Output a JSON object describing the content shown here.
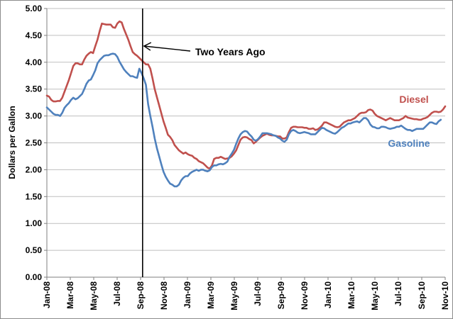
{
  "chart_data": {
    "type": "line",
    "title": "",
    "xlabel": "",
    "ylabel": "Dollars per Gallon",
    "ylim": [
      0,
      5
    ],
    "yticks": [
      "0.00",
      "0.50",
      "1.00",
      "1.50",
      "2.00",
      "2.50",
      "3.00",
      "3.50",
      "4.00",
      "4.50",
      "5.00"
    ],
    "grid": true,
    "xtick_labels": [
      "Jan-08",
      "Mar-08",
      "May-08",
      "Jul-08",
      "Sep-08",
      "Nov-08",
      "Jan-09",
      "Mar-09",
      "May-09",
      "Jul-09",
      "Sep-09",
      "Nov-09",
      "Jan-10",
      "Mar-10",
      "May-10",
      "Jul-10",
      "Sep-10",
      "Nov-10"
    ],
    "x_note": "weekly points, x in weeks from Jan-08",
    "annotation": {
      "text": "Two Years Ago",
      "at_week": 43.5
    },
    "series": [
      {
        "name": "Diesel",
        "color": "#c0504d",
        "values": [
          3.38,
          3.36,
          3.3,
          3.27,
          3.27,
          3.28,
          3.28,
          3.34,
          3.45,
          3.56,
          3.67,
          3.8,
          3.93,
          3.98,
          3.98,
          3.96,
          3.96,
          4.05,
          4.12,
          4.16,
          4.19,
          4.17,
          4.3,
          4.42,
          4.58,
          4.72,
          4.71,
          4.7,
          4.7,
          4.7,
          4.65,
          4.64,
          4.72,
          4.76,
          4.74,
          4.62,
          4.52,
          4.42,
          4.3,
          4.19,
          4.15,
          4.12,
          4.08,
          4.04,
          4.0,
          3.96,
          3.96,
          3.88,
          3.7,
          3.5,
          3.35,
          3.2,
          3.05,
          2.9,
          2.78,
          2.65,
          2.61,
          2.55,
          2.46,
          2.41,
          2.36,
          2.33,
          2.3,
          2.32,
          2.29,
          2.27,
          2.26,
          2.22,
          2.2,
          2.16,
          2.14,
          2.12,
          2.08,
          2.04,
          2.02,
          2.08,
          2.2,
          2.22,
          2.22,
          2.24,
          2.22,
          2.2,
          2.21,
          2.22,
          2.25,
          2.3,
          2.36,
          2.46,
          2.56,
          2.6,
          2.61,
          2.6,
          2.57,
          2.55,
          2.49,
          2.52,
          2.56,
          2.6,
          2.63,
          2.65,
          2.67,
          2.65,
          2.64,
          2.64,
          2.63,
          2.62,
          2.62,
          2.58,
          2.58,
          2.6,
          2.7,
          2.78,
          2.8,
          2.8,
          2.79,
          2.79,
          2.79,
          2.78,
          2.78,
          2.76,
          2.76,
          2.77,
          2.74,
          2.75,
          2.78,
          2.82,
          2.88,
          2.88,
          2.86,
          2.84,
          2.82,
          2.8,
          2.79,
          2.8,
          2.84,
          2.88,
          2.9,
          2.92,
          2.92,
          2.94,
          2.96,
          3.0,
          3.04,
          3.06,
          3.06,
          3.07,
          3.11,
          3.12,
          3.1,
          3.04,
          3.0,
          2.98,
          2.96,
          2.94,
          2.92,
          2.94,
          2.96,
          2.94,
          2.92,
          2.92,
          2.92,
          2.94,
          2.96,
          3.0,
          2.97,
          2.96,
          2.95,
          2.94,
          2.94,
          2.93,
          2.93,
          2.95,
          2.96,
          2.98,
          3.02,
          3.06,
          3.08,
          3.08,
          3.07,
          3.08,
          3.12,
          3.18
        ]
      },
      {
        "name": "Gasoline",
        "color": "#4f81bd",
        "values": [
          3.16,
          3.12,
          3.08,
          3.04,
          3.02,
          3.02,
          3.0,
          3.06,
          3.15,
          3.2,
          3.24,
          3.3,
          3.34,
          3.31,
          3.33,
          3.37,
          3.41,
          3.5,
          3.6,
          3.66,
          3.68,
          3.76,
          3.85,
          3.98,
          4.04,
          4.08,
          4.12,
          4.13,
          4.13,
          4.15,
          4.16,
          4.15,
          4.1,
          4.01,
          3.94,
          3.87,
          3.82,
          3.78,
          3.74,
          3.74,
          3.72,
          3.71,
          3.88,
          3.8,
          3.7,
          3.58,
          3.22,
          3.0,
          2.8,
          2.58,
          2.4,
          2.25,
          2.1,
          1.96,
          1.87,
          1.8,
          1.74,
          1.72,
          1.69,
          1.69,
          1.72,
          1.8,
          1.85,
          1.88,
          1.88,
          1.93,
          1.96,
          1.98,
          2.0,
          1.98,
          2.0,
          2.0,
          1.98,
          1.97,
          1.99,
          2.05,
          2.08,
          2.08,
          2.1,
          2.11,
          2.1,
          2.12,
          2.15,
          2.24,
          2.3,
          2.37,
          2.48,
          2.58,
          2.66,
          2.7,
          2.72,
          2.71,
          2.66,
          2.62,
          2.56,
          2.54,
          2.57,
          2.62,
          2.68,
          2.68,
          2.68,
          2.67,
          2.66,
          2.64,
          2.63,
          2.6,
          2.58,
          2.54,
          2.52,
          2.56,
          2.66,
          2.72,
          2.74,
          2.72,
          2.69,
          2.68,
          2.69,
          2.7,
          2.69,
          2.68,
          2.66,
          2.66,
          2.66,
          2.7,
          2.74,
          2.78,
          2.77,
          2.74,
          2.72,
          2.7,
          2.68,
          2.67,
          2.7,
          2.74,
          2.78,
          2.8,
          2.83,
          2.86,
          2.86,
          2.88,
          2.89,
          2.9,
          2.88,
          2.92,
          2.96,
          2.96,
          2.92,
          2.84,
          2.8,
          2.79,
          2.77,
          2.77,
          2.8,
          2.8,
          2.79,
          2.77,
          2.76,
          2.77,
          2.78,
          2.8,
          2.8,
          2.82,
          2.79,
          2.76,
          2.74,
          2.74,
          2.72,
          2.74,
          2.76,
          2.76,
          2.76,
          2.76,
          2.8,
          2.84,
          2.88,
          2.88,
          2.86,
          2.85,
          2.9,
          2.93
        ]
      }
    ]
  }
}
